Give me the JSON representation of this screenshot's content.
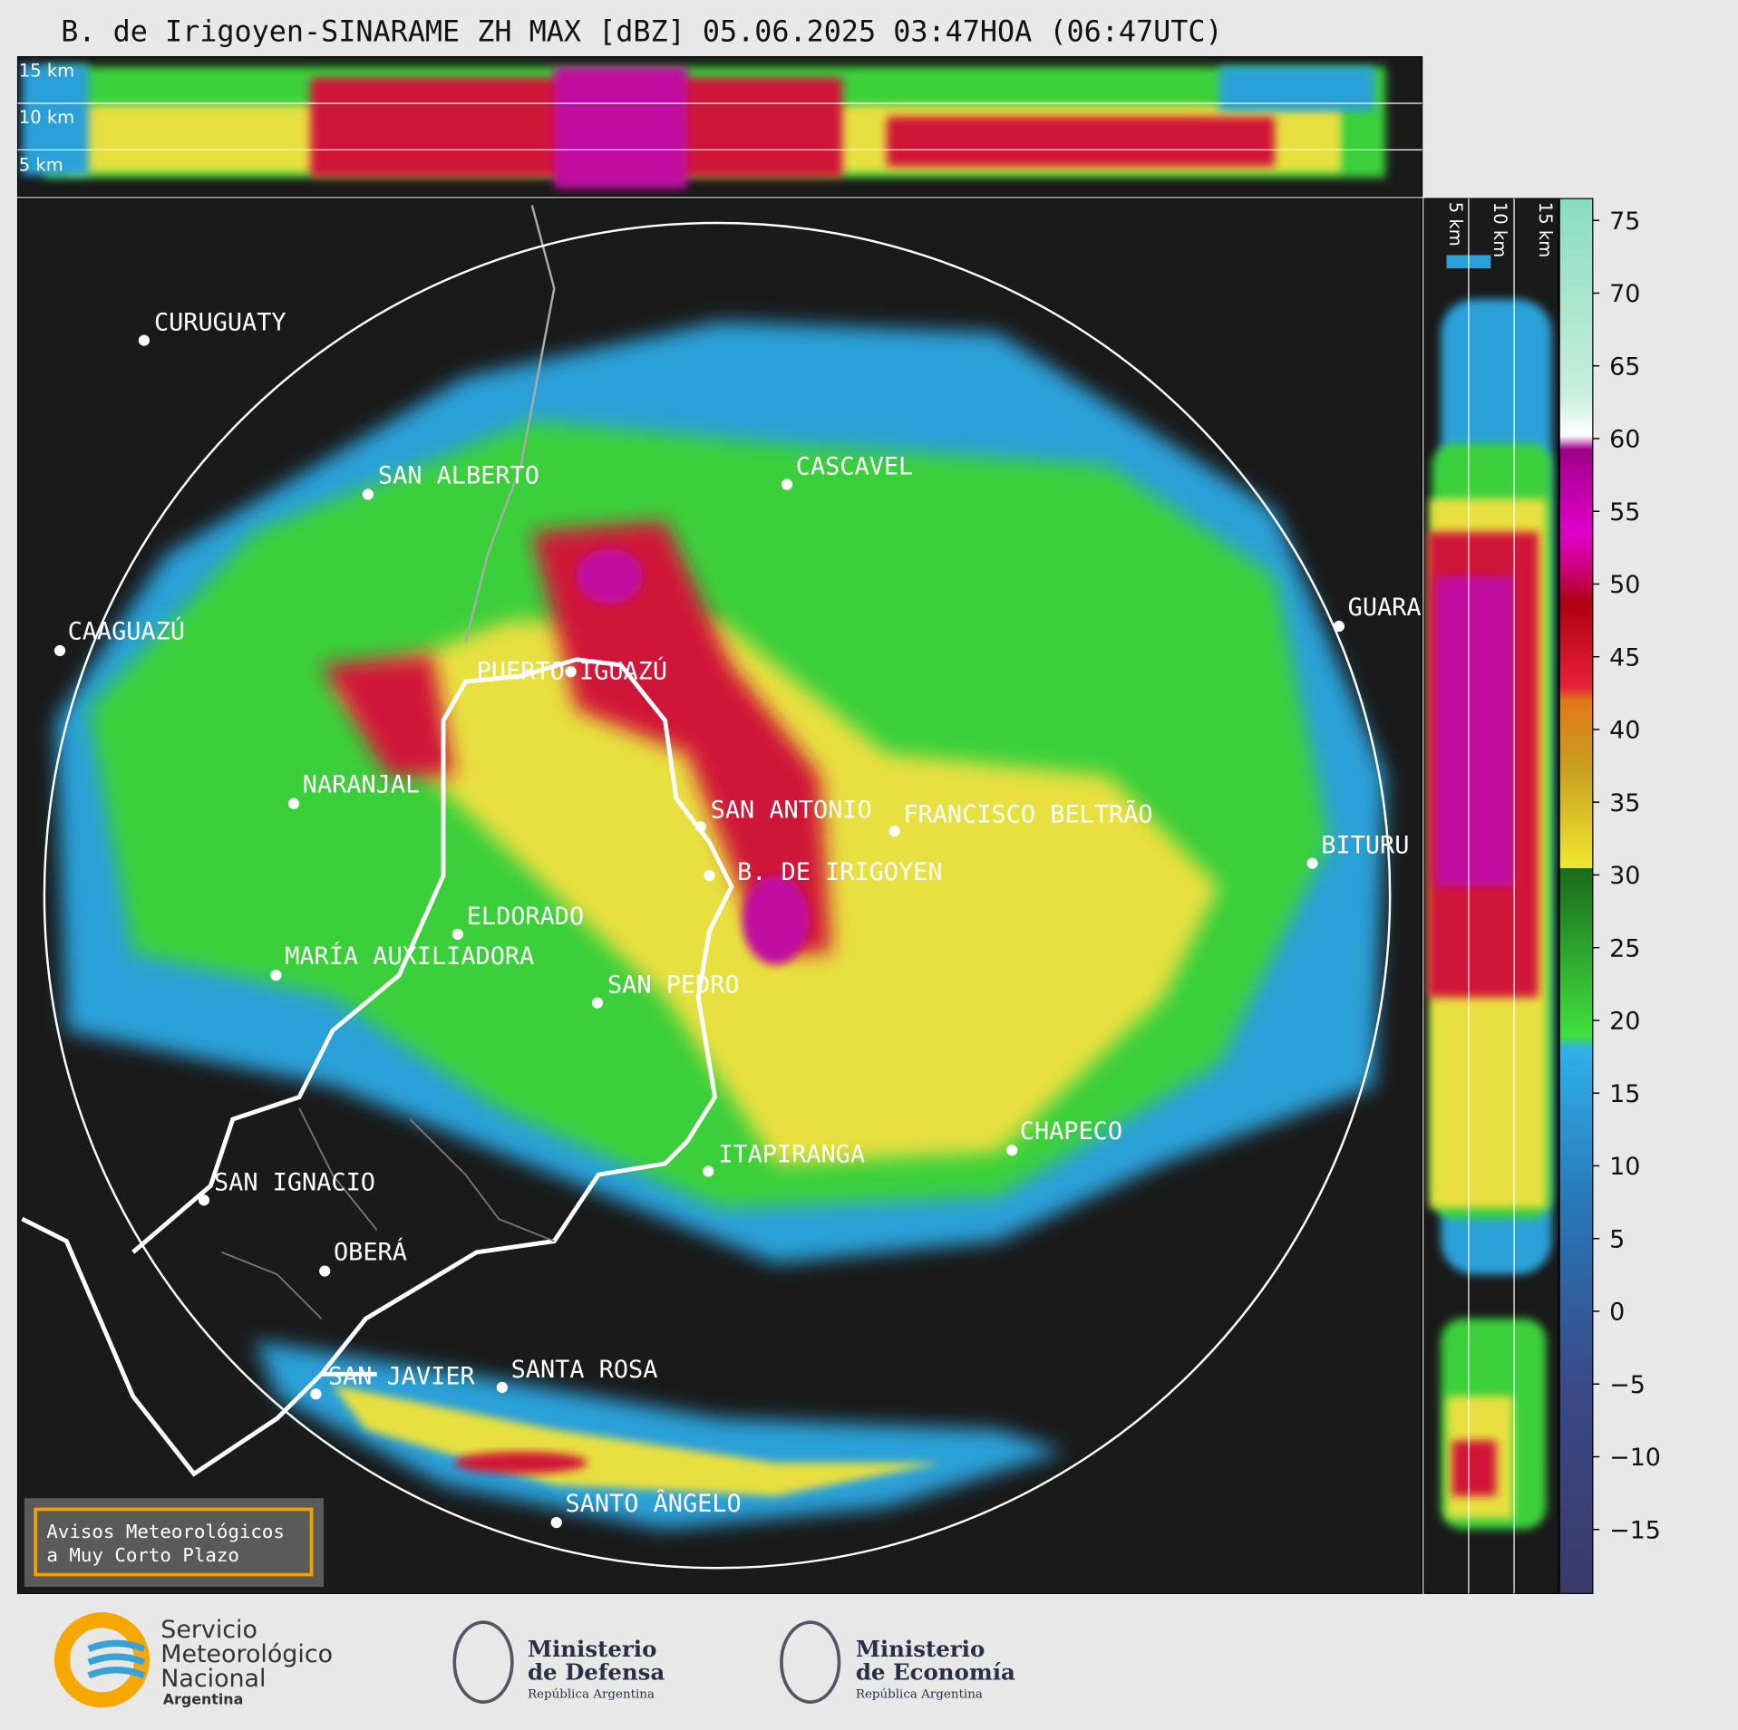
{
  "title": "B. de Irigoyen-SINARAME ZH MAX [dBZ] 05.06.2025 03:47HOA (06:47UTC)",
  "top_panel": {
    "height_labels": [
      "15 km",
      "10 km",
      "5 km"
    ]
  },
  "side_panel": {
    "height_labels": [
      "5 km",
      "10 km",
      "15 km"
    ]
  },
  "colorbar": {
    "lim": [
      -19.4,
      76.5
    ],
    "ticks": [
      75,
      70,
      65,
      60,
      55,
      50,
      45,
      40,
      35,
      30,
      25,
      20,
      15,
      10,
      5,
      0,
      {
        "value": -5,
        "label": "−5"
      },
      {
        "value": -10,
        "label": "−10"
      },
      {
        "value": -15,
        "label": "−15"
      }
    ]
  },
  "places": [
    "CURUGUATY",
    "SAN ALBERTO",
    "CASCAVEL",
    "CAAGUAZÚ",
    "GUARA",
    "PUERTO IGUAZÚ",
    "NARANJAL",
    "SAN ANTONIO",
    "FRANCISCO BELTRÃO",
    "BITURU",
    "B. DE IRIGOYEN",
    "ELDORADO",
    "MARÍA AUXILIADORA",
    "SAN PEDRO",
    "ITAPIRANGA",
    "CHAPECO",
    "SAN IGNACIO",
    "OBERÁ",
    "SAN JAVIER",
    "SANTA ROSA",
    "SANTO ÂNGELO"
  ],
  "notice": [
    "Avisos Meteorológicos",
    "a Muy Corto Plazo"
  ],
  "logos": [
    {
      "lines": [
        "Servicio",
        "Meteorológico",
        "Nacional",
        "Argentina"
      ]
    },
    {
      "lines": [
        "Ministerio",
        "de Defensa",
        "República Argentina"
      ]
    },
    {
      "lines": [
        "Ministerio",
        "de Economía",
        "República Argentina"
      ]
    }
  ]
}
